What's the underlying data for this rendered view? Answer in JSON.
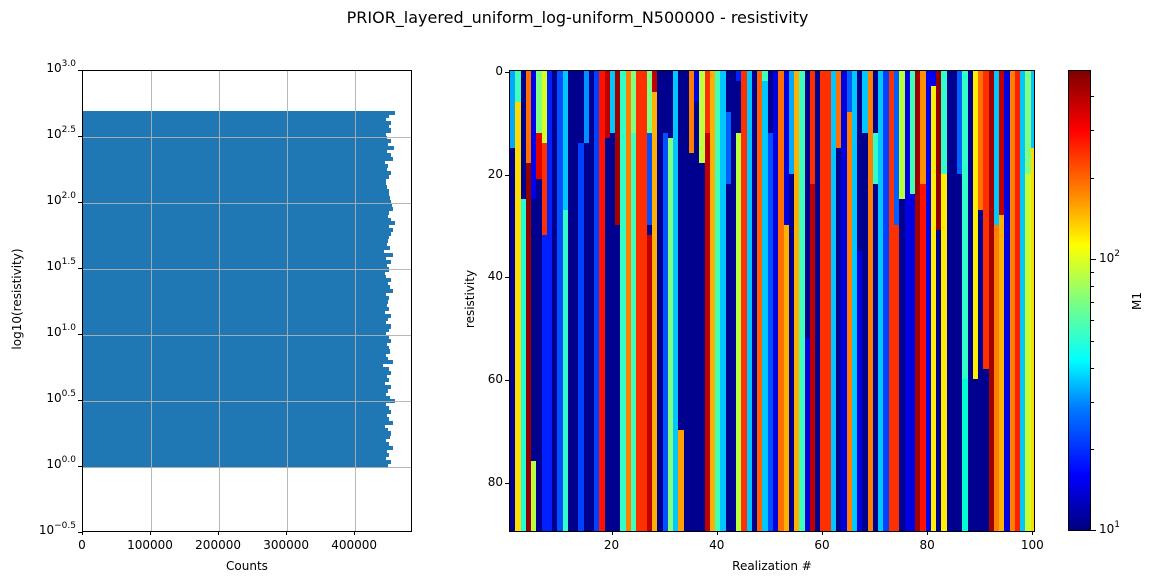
{
  "figure": {
    "title": "PRIOR_layered_uniform_log-uniform_N500000 - resistivity"
  },
  "chart_data": [
    {
      "type": "bar",
      "orientation": "horizontal",
      "title": "",
      "xlabel": "Counts",
      "ylabel": "log10(resistivity)",
      "xlim": [
        0,
        485000
      ],
      "ylim": [
        -0.5,
        3.0
      ],
      "grid": true,
      "x_ticks": [
        "0",
        "100000",
        "200000",
        "300000",
        "400000"
      ],
      "x_tick_values": [
        0,
        100000,
        200000,
        300000,
        400000
      ],
      "y_ticks": [
        {
          "base": "10",
          "exp": "3.0",
          "value": 3.0
        },
        {
          "base": "10",
          "exp": "2.5",
          "value": 2.5
        },
        {
          "base": "10",
          "exp": "2.0",
          "value": 2.0
        },
        {
          "base": "10",
          "exp": "1.5",
          "value": 1.5
        },
        {
          "base": "10",
          "exp": "1.0",
          "value": 1.0
        },
        {
          "base": "10",
          "exp": "0.5",
          "value": 0.5
        },
        {
          "base": "10",
          "exp": "0.0",
          "value": 0.0
        },
        {
          "base": "10",
          "exp": "−0.5",
          "value": -0.5
        }
      ],
      "bin_range": [
        0.0,
        2.7
      ],
      "bin_count": 100,
      "counts": [
        448000,
        452000,
        445000,
        450000,
        447000,
        455000,
        449000,
        446000,
        451000,
        453000,
        448000,
        444000,
        456000,
        450000,
        447000,
        452000,
        449000,
        445000,
        458000,
        451000,
        446000,
        448000,
        452000,
        444000,
        450000,
        447000,
        453000,
        449000,
        441000,
        455000,
        448000,
        446000,
        451000,
        450000,
        447000,
        452000,
        449000,
        445000,
        450000,
        453000,
        446000,
        448000,
        452000,
        444000,
        450000,
        447000,
        448000,
        449000,
        446000,
        455000,
        451000,
        448000,
        452000,
        446000,
        444000,
        449000,
        447000,
        452000,
        446000,
        456000,
        443000,
        451000,
        447000,
        448000,
        450000,
        452000,
        455000,
        449000,
        458000,
        452000,
        448000,
        450000,
        455000,
        454000,
        452000,
        451000,
        450000,
        449000,
        447000,
        446000,
        445000,
        450000,
        452000,
        447000,
        448000,
        444000,
        456000,
        452000,
        447000,
        457000,
        448000,
        452000,
        447000,
        445000,
        452000,
        450000,
        453000,
        446000,
        449000,
        459000
      ]
    },
    {
      "type": "heatmap",
      "title": "",
      "xlabel": "Realization #",
      "ylabel": "resistivity",
      "xlim": [
        1,
        100
      ],
      "ylim": [
        90,
        0
      ],
      "x_ticks": [
        "20",
        "40",
        "60",
        "80",
        "100"
      ],
      "x_tick_values": [
        20,
        40,
        60,
        80,
        100
      ],
      "y_ticks": [
        "0",
        "20",
        "40",
        "60",
        "80"
      ],
      "y_tick_values": [
        0,
        20,
        40,
        60,
        80
      ],
      "colormap": "jet",
      "color_scale": "log",
      "clim": [
        10,
        500
      ],
      "colorbar": {
        "label": "M1",
        "ticks": [
          {
            "base": "10",
            "exp": "1",
            "value": 10
          },
          {
            "base": "10",
            "exp": "2",
            "value": 100
          }
        ]
      },
      "columns": [
        [
          [
            0,
            15,
            "#00a8ff"
          ],
          [
            15,
            90,
            "#00008f"
          ]
        ],
        [
          [
            0,
            6,
            "#40ffb8"
          ],
          [
            6,
            90,
            "#ffdc00"
          ]
        ],
        [
          [
            0,
            25,
            "#00008f"
          ],
          [
            25,
            90,
            "#20ffd8"
          ]
        ],
        [
          [
            0,
            18,
            "#ff7000"
          ],
          [
            18,
            90,
            "#8f0000"
          ]
        ],
        [
          [
            0,
            25,
            "#0000f0"
          ],
          [
            25,
            76,
            "#00008f"
          ],
          [
            76,
            90,
            "#b8ff40"
          ]
        ],
        [
          [
            0,
            12,
            "#80ff80"
          ],
          [
            12,
            21,
            "#e00000"
          ],
          [
            21,
            90,
            "#00008f"
          ]
        ],
        [
          [
            0,
            8,
            "#d8ff20"
          ],
          [
            8,
            14,
            "#d8ff20"
          ],
          [
            14,
            32,
            "#ff3000"
          ],
          [
            32,
            90,
            "#0020ff"
          ]
        ],
        [
          [
            0,
            90,
            "#0020ff"
          ]
        ],
        [
          [
            0,
            90,
            "#00008f"
          ]
        ],
        [
          [
            0,
            90,
            "#0050ff"
          ]
        ],
        [
          [
            0,
            27,
            "#00c8ff"
          ],
          [
            27,
            90,
            "#30ffc8"
          ]
        ],
        [
          [
            0,
            90,
            "#00008f"
          ]
        ],
        [
          [
            0,
            90,
            "#00008f"
          ]
        ],
        [
          [
            0,
            14,
            "#00008f"
          ],
          [
            14,
            90,
            "#0040ff"
          ]
        ],
        [
          [
            0,
            5,
            "#0090ff"
          ],
          [
            5,
            14,
            "#0090ff"
          ],
          [
            14,
            90,
            "#00008f"
          ]
        ],
        [
          [
            0,
            90,
            "#00008f"
          ]
        ],
        [
          [
            0,
            90,
            "#0040ff"
          ]
        ],
        [
          [
            0,
            90,
            "#ff1000"
          ]
        ],
        [
          [
            0,
            13,
            "#c00000"
          ],
          [
            13,
            90,
            "#00008f"
          ]
        ],
        [
          [
            0,
            12,
            "#00c8ff"
          ],
          [
            12,
            90,
            "#00008f"
          ]
        ],
        [
          [
            0,
            30,
            "#a00000"
          ],
          [
            30,
            90,
            "#00008f"
          ]
        ],
        [
          [
            0,
            12,
            "#30ffc8"
          ],
          [
            12,
            90,
            "#30ffc8"
          ]
        ],
        [
          [
            0,
            90,
            "#ff8000"
          ]
        ],
        [
          [
            0,
            12,
            "#80ff80"
          ],
          [
            12,
            90,
            "#40ffb8"
          ]
        ],
        [
          [
            0,
            90,
            "#ff3000"
          ]
        ],
        [
          [
            0,
            90,
            "#ff3000"
          ]
        ],
        [
          [
            0,
            12,
            "#80ff80"
          ],
          [
            12,
            30,
            "#0050ff"
          ],
          [
            30,
            32,
            "#00008f"
          ],
          [
            32,
            90,
            "#c00000"
          ]
        ],
        [
          [
            0,
            4,
            "#c00000"
          ],
          [
            4,
            90,
            "#ffb000"
          ]
        ],
        [
          [
            0,
            90,
            "#00008f"
          ]
        ],
        [
          [
            0,
            12,
            "#00008f"
          ],
          [
            12,
            90,
            "#0050ff"
          ]
        ],
        [
          [
            0,
            13,
            "#00008f"
          ],
          [
            13,
            90,
            "#80ff80"
          ]
        ],
        [
          [
            0,
            90,
            "#00c8ff"
          ]
        ],
        [
          [
            0,
            70,
            "#00008f"
          ],
          [
            70,
            90,
            "#ffa000"
          ]
        ],
        [
          [
            0,
            90,
            "#00008f"
          ]
        ],
        [
          [
            0,
            16,
            "#ff8000"
          ],
          [
            16,
            90,
            "#00008f"
          ]
        ],
        [
          [
            0,
            6,
            "#0000e0"
          ],
          [
            6,
            90,
            "#00008f"
          ]
        ],
        [
          [
            0,
            18,
            "#c0ff40"
          ],
          [
            18,
            90,
            "#00008f"
          ]
        ],
        [
          [
            0,
            5,
            "#ff3000"
          ],
          [
            5,
            12,
            "#ff3000"
          ],
          [
            12,
            90,
            "#c00000"
          ]
        ],
        [
          [
            0,
            12,
            "#ffb000"
          ],
          [
            12,
            90,
            "#ffb000"
          ]
        ],
        [
          [
            0,
            90,
            "#40ffb8"
          ]
        ],
        [
          [
            0,
            90,
            "#00c8ff"
          ]
        ],
        [
          [
            0,
            8,
            "#00008f"
          ],
          [
            8,
            22,
            "#0060ff"
          ],
          [
            22,
            90,
            "#00008f"
          ]
        ],
        [
          [
            0,
            90,
            "#00008f"
          ]
        ],
        [
          [
            0,
            2,
            "#0020ff"
          ],
          [
            2,
            12,
            "#00008f"
          ],
          [
            12,
            90,
            "#b8ff40"
          ]
        ],
        [
          [
            0,
            16,
            "#ff3000"
          ],
          [
            16,
            90,
            "#ff3000"
          ]
        ],
        [
          [
            0,
            90,
            "#00c8ff"
          ]
        ],
        [
          [
            0,
            2,
            "#00008f"
          ],
          [
            2,
            90,
            "#00008f"
          ]
        ],
        [
          [
            0,
            90,
            "#ff6000"
          ]
        ],
        [
          [
            0,
            2,
            "#40ffb8"
          ],
          [
            2,
            90,
            "#00c8ff"
          ]
        ],
        [
          [
            0,
            12,
            "#00008f"
          ],
          [
            12,
            90,
            "#0050ff"
          ]
        ],
        [
          [
            0,
            90,
            "#0000e0"
          ]
        ],
        [
          [
            0,
            90,
            "#ff7000"
          ]
        ],
        [
          [
            0,
            30,
            "#0000e0"
          ],
          [
            30,
            90,
            "#ffb000"
          ]
        ],
        [
          [
            0,
            20,
            "#00a8ff"
          ],
          [
            20,
            90,
            "#00008f"
          ]
        ],
        [
          [
            0,
            21,
            "#ffb000"
          ],
          [
            21,
            90,
            "#ffb000"
          ]
        ],
        [
          [
            0,
            17,
            "#40ffb8"
          ],
          [
            17,
            90,
            "#40ffb8"
          ]
        ],
        [
          [
            0,
            52,
            "#00008f"
          ],
          [
            52,
            90,
            "#0000e0"
          ]
        ],
        [
          [
            0,
            22,
            "#ff3000"
          ],
          [
            22,
            90,
            "#c00000"
          ]
        ],
        [
          [
            0,
            20,
            "#00008f"
          ],
          [
            20,
            90,
            "#00008f"
          ]
        ],
        [
          [
            0,
            90,
            "#ff3000"
          ]
        ],
        [
          [
            0,
            90,
            "#ff3000"
          ]
        ],
        [
          [
            0,
            90,
            "#00c8ff"
          ]
        ],
        [
          [
            0,
            15,
            "#ff7000"
          ],
          [
            15,
            90,
            "#00008f"
          ]
        ],
        [
          [
            0,
            90,
            "#0000e0"
          ]
        ],
        [
          [
            0,
            8,
            "#0060ff"
          ],
          [
            8,
            90,
            "#ff8000"
          ]
        ],
        [
          [
            0,
            90,
            "#00c8ff"
          ]
        ],
        [
          [
            0,
            35,
            "#00008f"
          ],
          [
            35,
            90,
            "#0000e0"
          ]
        ],
        [
          [
            0,
            12,
            "#00c8ff"
          ],
          [
            12,
            90,
            "#00008f"
          ]
        ],
        [
          [
            0,
            22,
            "#ff8000"
          ],
          [
            22,
            90,
            "#ff8000"
          ]
        ],
        [
          [
            0,
            12,
            "#00008f"
          ],
          [
            12,
            22,
            "#30ffc8"
          ],
          [
            22,
            90,
            "#00008f"
          ]
        ],
        [
          [
            0,
            90,
            "#00c8ff"
          ]
        ],
        [
          [
            0,
            90,
            "#0040ff"
          ]
        ],
        [
          [
            0,
            90,
            "#ff3000"
          ]
        ],
        [
          [
            0,
            30,
            "#0060ff"
          ],
          [
            30,
            90,
            "#ff3000"
          ]
        ],
        [
          [
            0,
            25,
            "#b8ff40"
          ],
          [
            25,
            90,
            "#00008f"
          ]
        ],
        [
          [
            0,
            90,
            "#0000e0"
          ]
        ],
        [
          [
            0,
            24,
            "#40ffb8"
          ],
          [
            24,
            90,
            "#0000e0"
          ]
        ],
        [
          [
            0,
            90,
            "#a00000"
          ]
        ],
        [
          [
            0,
            22,
            "#ff9000"
          ],
          [
            22,
            90,
            "#ff1000"
          ]
        ],
        [
          [
            0,
            90,
            "#0000f0"
          ]
        ],
        [
          [
            0,
            3,
            "#0000f0"
          ],
          [
            3,
            90,
            "#ffee00"
          ]
        ],
        [
          [
            0,
            31,
            "#8f0000"
          ],
          [
            31,
            90,
            "#00008f"
          ]
        ],
        [
          [
            0,
            20,
            "#30ffc8"
          ],
          [
            20,
            90,
            "#ffee00"
          ]
        ],
        [
          [
            0,
            5,
            "#00008f"
          ],
          [
            5,
            90,
            "#00008f"
          ]
        ],
        [
          [
            0,
            90,
            "#00008f"
          ]
        ],
        [
          [
            0,
            20,
            "#0060ff"
          ],
          [
            20,
            90,
            "#00008f"
          ]
        ],
        [
          [
            0,
            60,
            "#30ffc8"
          ],
          [
            60,
            90,
            "#00ffd0"
          ]
        ],
        [
          [
            0,
            90,
            "#00008f"
          ]
        ],
        [
          [
            0,
            60,
            "#ffee00"
          ],
          [
            60,
            90,
            "#00008f"
          ]
        ],
        [
          [
            0,
            27,
            "#ff7000"
          ],
          [
            27,
            90,
            "#00008f"
          ]
        ],
        [
          [
            0,
            18,
            "#ff3000"
          ],
          [
            18,
            58,
            "#ff3000"
          ],
          [
            58,
            90,
            "#00008f"
          ]
        ],
        [
          [
            0,
            90,
            "#a00000"
          ]
        ],
        [
          [
            0,
            30,
            "#00c8ff"
          ],
          [
            30,
            90,
            "#ff8000"
          ]
        ],
        [
          [
            0,
            28,
            "#c00000"
          ],
          [
            28,
            90,
            "#ffb000"
          ]
        ],
        [
          [
            0,
            20,
            "#0000e0"
          ],
          [
            20,
            90,
            "#0000e0"
          ]
        ],
        [
          [
            0,
            20,
            "#ff8000"
          ],
          [
            20,
            90,
            "#ff8000"
          ]
        ],
        [
          [
            0,
            20,
            "#ff2000"
          ],
          [
            20,
            90,
            "#ff2000"
          ]
        ],
        [
          [
            0,
            15,
            "#00c8ff"
          ],
          [
            15,
            90,
            "#00c8ff"
          ]
        ],
        [
          [
            0,
            20,
            "#80ff80"
          ],
          [
            20,
            90,
            "#c8ff30"
          ]
        ],
        [
          [
            0,
            15,
            "#00c8ff"
          ],
          [
            15,
            90,
            "#ffdc00"
          ]
        ]
      ]
    }
  ]
}
